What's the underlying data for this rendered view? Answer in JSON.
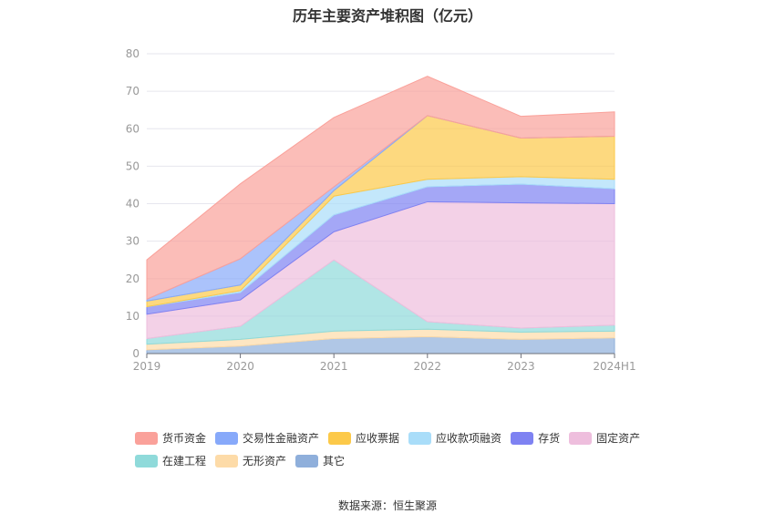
{
  "title": "历年主要资产堆积图（亿元）",
  "source": "数据来源：恒生聚源",
  "chart_data": {
    "type": "area",
    "stacked": true,
    "categories": [
      "2019",
      "2020",
      "2021",
      "2022",
      "2023",
      "2024H1"
    ],
    "ylim": [
      0,
      80
    ],
    "yticks": [
      "0",
      "10",
      "20",
      "30",
      "40",
      "50",
      "60",
      "70",
      "80"
    ],
    "grid": true,
    "legend_position": "bottom",
    "series": [
      {
        "name": "其它",
        "color": "#8fafdb",
        "values": [
          1.0,
          2.0,
          4.0,
          4.5,
          3.8,
          4.2
        ]
      },
      {
        "name": "无形资产",
        "color": "#fddba8",
        "values": [
          1.5,
          1.8,
          2.0,
          2.0,
          1.9,
          1.8
        ]
      },
      {
        "name": "在建工程",
        "color": "#8fdada",
        "values": [
          1.5,
          3.5,
          19.0,
          2.0,
          1.1,
          1.6
        ]
      },
      {
        "name": "固定资产",
        "color": "#eebedd",
        "values": [
          6.5,
          7.0,
          7.5,
          32.0,
          33.4,
          32.4
        ]
      },
      {
        "name": "存货",
        "color": "#7e82f2",
        "values": [
          2.0,
          2.0,
          4.5,
          4.0,
          5.0,
          4.0
        ]
      },
      {
        "name": "应收款项融资",
        "color": "#a9ddf9",
        "values": [
          0.0,
          0.5,
          5.0,
          2.0,
          2.0,
          2.5
        ]
      },
      {
        "name": "应收票据",
        "color": "#fcc949",
        "values": [
          1.5,
          1.5,
          1.5,
          17.0,
          10.3,
          11.5
        ]
      },
      {
        "name": "交易性金融资产",
        "color": "#87a9fa",
        "values": [
          0.5,
          7.0,
          1.0,
          0.0,
          0.0,
          0.0
        ]
      },
      {
        "name": "货币资金",
        "color": "#faa19a",
        "values": [
          10.5,
          20.0,
          18.5,
          10.5,
          5.8,
          6.5
        ]
      }
    ]
  }
}
